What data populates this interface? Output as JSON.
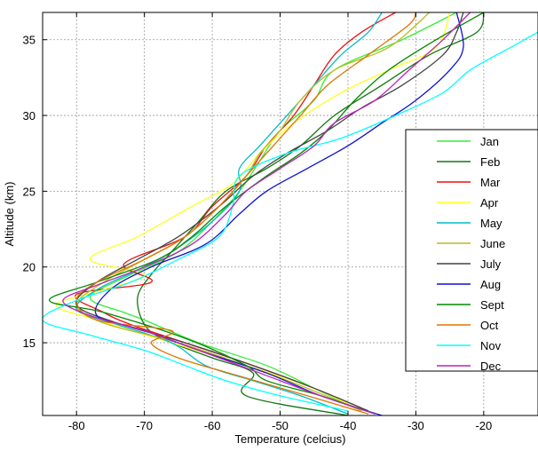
{
  "chart_data": {
    "type": "line",
    "title": "",
    "xlabel": "Temperature (celcius)",
    "ylabel": "Altitude (km)",
    "xlim": [
      -85,
      -12
    ],
    "ylim": [
      10.2,
      36.8
    ],
    "xticks": [
      -80,
      -70,
      -60,
      -50,
      -40,
      -30,
      -20
    ],
    "yticks": [
      15,
      20,
      25,
      30,
      35
    ],
    "grid": true,
    "legend_position": "right",
    "series": [
      {
        "name": "Jan",
        "color": "#33ee33",
        "points": [
          [
            -38,
            10.5
          ],
          [
            -45,
            12
          ],
          [
            -52,
            13.5
          ],
          [
            -62,
            15
          ],
          [
            -70,
            16.5
          ],
          [
            -73,
            17
          ],
          [
            -78,
            18
          ],
          [
            -72,
            19.5
          ],
          [
            -65,
            21
          ],
          [
            -60,
            23
          ],
          [
            -56,
            25
          ],
          [
            -53,
            27
          ],
          [
            -50,
            29
          ],
          [
            -45,
            31
          ],
          [
            -42,
            33
          ],
          [
            -32,
            35
          ],
          [
            -24,
            36.8
          ]
        ]
      },
      {
        "name": "Feb",
        "color": "#117711",
        "points": [
          [
            -40,
            10.2
          ],
          [
            -55,
            11.5
          ],
          [
            -54,
            13
          ],
          [
            -60,
            14
          ],
          [
            -67,
            15.2
          ],
          [
            -70,
            16.2
          ],
          [
            -71,
            18
          ],
          [
            -69,
            19.5
          ],
          [
            -66,
            21
          ],
          [
            -62,
            23
          ],
          [
            -58,
            25
          ],
          [
            -52,
            26.5
          ],
          [
            -47,
            28
          ],
          [
            -42,
            30
          ],
          [
            -35,
            32
          ],
          [
            -28,
            34
          ],
          [
            -21,
            35.5
          ],
          [
            -20,
            36.8
          ]
        ]
      },
      {
        "name": "Mar",
        "color": "#ee1111",
        "points": [
          [
            -37,
            10.5
          ],
          [
            -45,
            12
          ],
          [
            -54,
            13.5
          ],
          [
            -64,
            15
          ],
          [
            -72,
            16.2
          ],
          [
            -76,
            17
          ],
          [
            -80,
            18.2
          ],
          [
            -69,
            19
          ],
          [
            -73,
            20.2
          ],
          [
            -64,
            22
          ],
          [
            -60,
            24
          ],
          [
            -55,
            26
          ],
          [
            -52,
            28
          ],
          [
            -48,
            30
          ],
          [
            -45,
            32
          ],
          [
            -42,
            34
          ],
          [
            -38,
            35.5
          ],
          [
            -33,
            36.8
          ]
        ]
      },
      {
        "name": "Apr",
        "color": "#ffff22",
        "points": [
          [
            -38,
            10.5
          ],
          [
            -45,
            12
          ],
          [
            -55,
            13.5
          ],
          [
            -66,
            15
          ],
          [
            -77,
            16.5
          ],
          [
            -83,
            17.5
          ],
          [
            -76,
            18.5
          ],
          [
            -70,
            19.5
          ],
          [
            -78,
            20.5
          ],
          [
            -71,
            22
          ],
          [
            -63,
            24
          ],
          [
            -57,
            25.5
          ],
          [
            -53,
            27.5
          ],
          [
            -48,
            29.5
          ],
          [
            -41,
            31.5
          ],
          [
            -34,
            33
          ],
          [
            -27,
            34.5
          ],
          [
            -25,
            36.8
          ]
        ]
      },
      {
        "name": "May",
        "color": "#00bbcc",
        "points": [
          [
            -40,
            10.3
          ],
          [
            -47,
            11.5
          ],
          [
            -54,
            12.5
          ],
          [
            -61,
            13.5
          ],
          [
            -66,
            15
          ],
          [
            -74,
            16.2
          ],
          [
            -80,
            17.2
          ],
          [
            -77,
            18.5
          ],
          [
            -71,
            19.8
          ],
          [
            -66,
            21
          ],
          [
            -60,
            23
          ],
          [
            -56,
            25
          ],
          [
            -56,
            26.5
          ],
          [
            -53,
            28
          ],
          [
            -49,
            30
          ],
          [
            -45,
            32
          ],
          [
            -41,
            34
          ],
          [
            -37,
            35.5
          ],
          [
            -35,
            36.8
          ]
        ]
      },
      {
        "name": "June",
        "color": "#bbbb22",
        "points": [
          [
            -38,
            10.5
          ],
          [
            -46,
            12
          ],
          [
            -55,
            13.5
          ],
          [
            -65,
            15
          ],
          [
            -76,
            16.3
          ],
          [
            -80,
            17.5
          ],
          [
            -76,
            19
          ],
          [
            -70,
            20.5
          ],
          [
            -64,
            22
          ],
          [
            -59,
            24
          ],
          [
            -55,
            26
          ],
          [
            -53,
            27.5
          ],
          [
            -50,
            29
          ],
          [
            -47,
            31
          ],
          [
            -42,
            33
          ],
          [
            -34,
            34.5
          ],
          [
            -28,
            36.8
          ]
        ]
      },
      {
        "name": "July",
        "color": "#444444",
        "points": [
          [
            -37,
            10.5
          ],
          [
            -45,
            12
          ],
          [
            -54,
            13.5
          ],
          [
            -64,
            15
          ],
          [
            -74,
            16.3
          ],
          [
            -80,
            17.5
          ],
          [
            -77,
            19
          ],
          [
            -71,
            20.5
          ],
          [
            -65,
            22
          ],
          [
            -59,
            24
          ],
          [
            -54,
            26
          ],
          [
            -49,
            27.5
          ],
          [
            -43,
            29
          ],
          [
            -38,
            30.5
          ],
          [
            -32,
            32
          ],
          [
            -26,
            34
          ],
          [
            -24,
            35.5
          ],
          [
            -23,
            36.8
          ]
        ]
      },
      {
        "name": "Aug",
        "color": "#1111cc",
        "points": [
          [
            -35,
            10.2
          ],
          [
            -44,
            11.5
          ],
          [
            -52,
            13
          ],
          [
            -62,
            14.5
          ],
          [
            -70,
            15.8
          ],
          [
            -77,
            16.8
          ],
          [
            -75,
            18.5
          ],
          [
            -69,
            20
          ],
          [
            -61,
            21.5
          ],
          [
            -56,
            23.5
          ],
          [
            -52,
            25
          ],
          [
            -46,
            26.5
          ],
          [
            -40,
            28
          ],
          [
            -35,
            29.5
          ],
          [
            -30,
            31
          ],
          [
            -25,
            33
          ],
          [
            -23,
            34.5
          ],
          [
            -24,
            36.8
          ]
        ]
      },
      {
        "name": "Sept",
        "color": "#008800",
        "points": [
          [
            -36,
            10.3
          ],
          [
            -44,
            11.5
          ],
          [
            -52,
            12.5
          ],
          [
            -55,
            13.5
          ],
          [
            -64,
            15.3
          ],
          [
            -76,
            17
          ],
          [
            -84,
            17.8
          ],
          [
            -77,
            19
          ],
          [
            -68,
            20.5
          ],
          [
            -63,
            22
          ],
          [
            -58,
            24
          ],
          [
            -52,
            26
          ],
          [
            -47,
            27.5
          ],
          [
            -43,
            29
          ],
          [
            -39,
            31
          ],
          [
            -34,
            33
          ],
          [
            -27,
            35
          ],
          [
            -20,
            36.8
          ]
        ]
      },
      {
        "name": "Oct",
        "color": "#dd7700",
        "points": [
          [
            -37,
            10.3
          ],
          [
            -46,
            11.5
          ],
          [
            -56,
            12.8
          ],
          [
            -65,
            14
          ],
          [
            -69,
            15
          ],
          [
            -66,
            15.8
          ],
          [
            -77,
            16.5
          ],
          [
            -80,
            17.8
          ],
          [
            -77,
            19
          ],
          [
            -70,
            20.5
          ],
          [
            -64,
            22
          ],
          [
            -59,
            24
          ],
          [
            -55,
            26
          ],
          [
            -51,
            28
          ],
          [
            -47,
            30
          ],
          [
            -43,
            32
          ],
          [
            -37,
            34
          ],
          [
            -31,
            36
          ],
          [
            -30,
            36.8
          ]
        ]
      },
      {
        "name": "Nov",
        "color": "#00ffff",
        "points": [
          [
            -40,
            10.5
          ],
          [
            -50,
            11.5
          ],
          [
            -58,
            12.5
          ],
          [
            -64,
            13.5
          ],
          [
            -70,
            14.5
          ],
          [
            -78,
            15.5
          ],
          [
            -85,
            16.5
          ],
          [
            -80,
            17.8
          ],
          [
            -72,
            19
          ],
          [
            -65,
            20.5
          ],
          [
            -59,
            22
          ],
          [
            -57,
            24
          ],
          [
            -56,
            26
          ],
          [
            -49,
            27.5
          ],
          [
            -41,
            28.5
          ],
          [
            -33,
            30
          ],
          [
            -26,
            31.5
          ],
          [
            -22,
            33
          ],
          [
            -16,
            34.5
          ],
          [
            -12,
            35.5
          ]
        ]
      },
      {
        "name": "Dec",
        "color": "#bb22bb",
        "points": [
          [
            -36,
            10.3
          ],
          [
            -44,
            11.5
          ],
          [
            -53,
            13
          ],
          [
            -62,
            14.5
          ],
          [
            -70,
            15.8
          ],
          [
            -78,
            16.8
          ],
          [
            -82,
            17.8
          ],
          [
            -77,
            18.8
          ],
          [
            -70,
            20
          ],
          [
            -63,
            21.5
          ],
          [
            -58,
            23.5
          ],
          [
            -55,
            25
          ],
          [
            -50,
            26.5
          ],
          [
            -45,
            28
          ],
          [
            -42,
            29.5
          ],
          [
            -36,
            31
          ],
          [
            -31,
            33
          ],
          [
            -26,
            35
          ],
          [
            -22,
            36.8
          ]
        ]
      }
    ]
  }
}
